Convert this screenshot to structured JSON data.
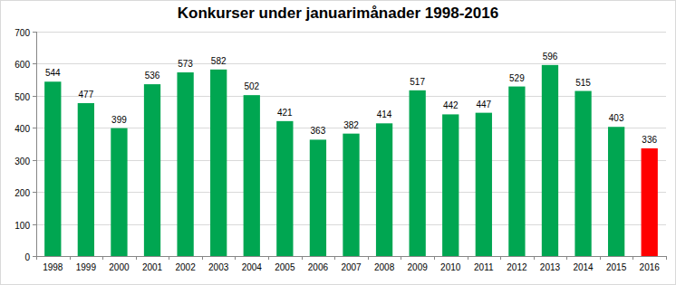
{
  "chart_data": {
    "type": "bar",
    "title": "Konkurser under januarimånader 1998-2016",
    "categories": [
      "1998",
      "1999",
      "2000",
      "2001",
      "2002",
      "2003",
      "2004",
      "2005",
      "2006",
      "2007",
      "2008",
      "2009",
      "2010",
      "2011",
      "2012",
      "2013",
      "2014",
      "2015",
      "2016"
    ],
    "values": [
      544,
      477,
      399,
      536,
      573,
      582,
      502,
      421,
      363,
      382,
      414,
      517,
      442,
      447,
      529,
      596,
      515,
      403,
      336
    ],
    "colors": [
      "#00a651",
      "#00a651",
      "#00a651",
      "#00a651",
      "#00a651",
      "#00a651",
      "#00a651",
      "#00a651",
      "#00a651",
      "#00a651",
      "#00a651",
      "#00a651",
      "#00a651",
      "#00a651",
      "#00a651",
      "#00a651",
      "#00a651",
      "#00a651",
      "#ff0000"
    ],
    "ylim": [
      0,
      700
    ],
    "yticks": [
      0,
      100,
      200,
      300,
      400,
      500,
      600,
      700
    ],
    "grid": true,
    "data_labels": true
  }
}
